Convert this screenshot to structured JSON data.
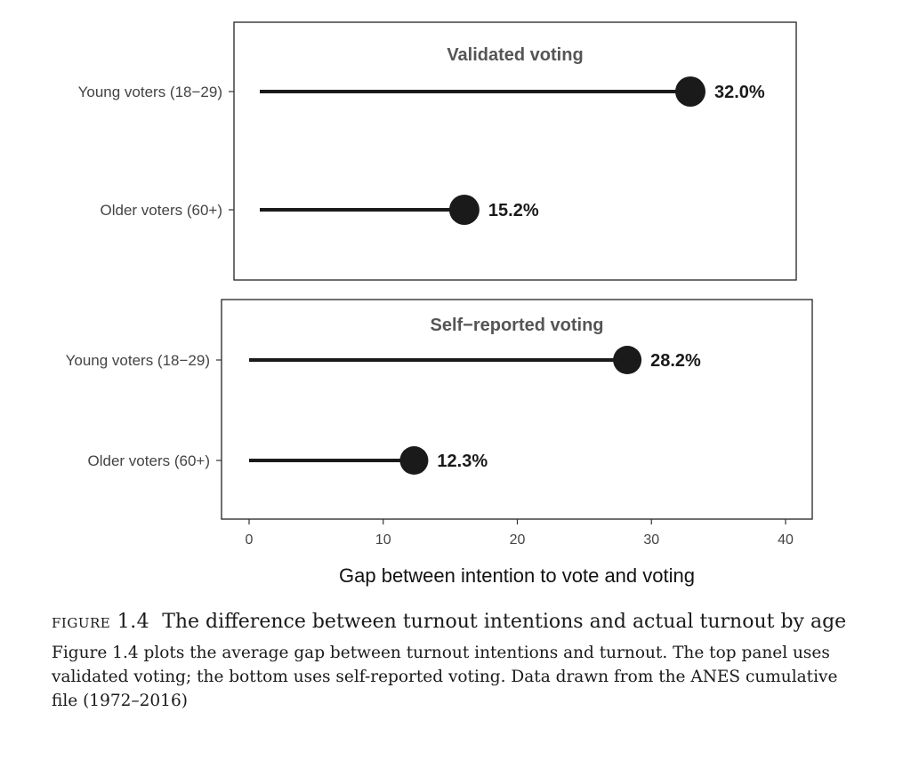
{
  "chart_data": [
    {
      "type": "lollipop",
      "title": "Validated voting",
      "categories": [
        "Young voters (18−29)",
        "Older voters (60+)"
      ],
      "values": [
        32.0,
        15.2
      ],
      "value_labels": [
        "32.0%",
        "15.2%"
      ],
      "xlim": [
        0,
        40
      ],
      "grid": false
    },
    {
      "type": "lollipop",
      "title": "Self−reported voting",
      "categories": [
        "Young voters (18−29)",
        "Older voters (60+)"
      ],
      "values": [
        28.2,
        12.3
      ],
      "value_labels": [
        "28.2%",
        "12.3%"
      ],
      "xlim": [
        0,
        40
      ],
      "grid": false
    }
  ],
  "x_axis": {
    "label": "Gap between intention to vote and voting",
    "ticks": [
      "0",
      "10",
      "20",
      "30",
      "40"
    ],
    "tick_values": [
      0,
      10,
      20,
      30,
      40
    ]
  },
  "caption": {
    "figure_label": "figure 1.4",
    "figure_title": "The difference between turnout intentions and actual turnout by age",
    "description": "Figure 1.4 plots the average gap between turnout intentions and turnout. The top panel uses validated voting; the bottom uses self-reported voting. Data drawn from the ANES cumulative file (1972–2016)"
  },
  "colors": {
    "mark": "#1a1a1a",
    "panel_title": "#555555",
    "axis_text": "#444444"
  }
}
